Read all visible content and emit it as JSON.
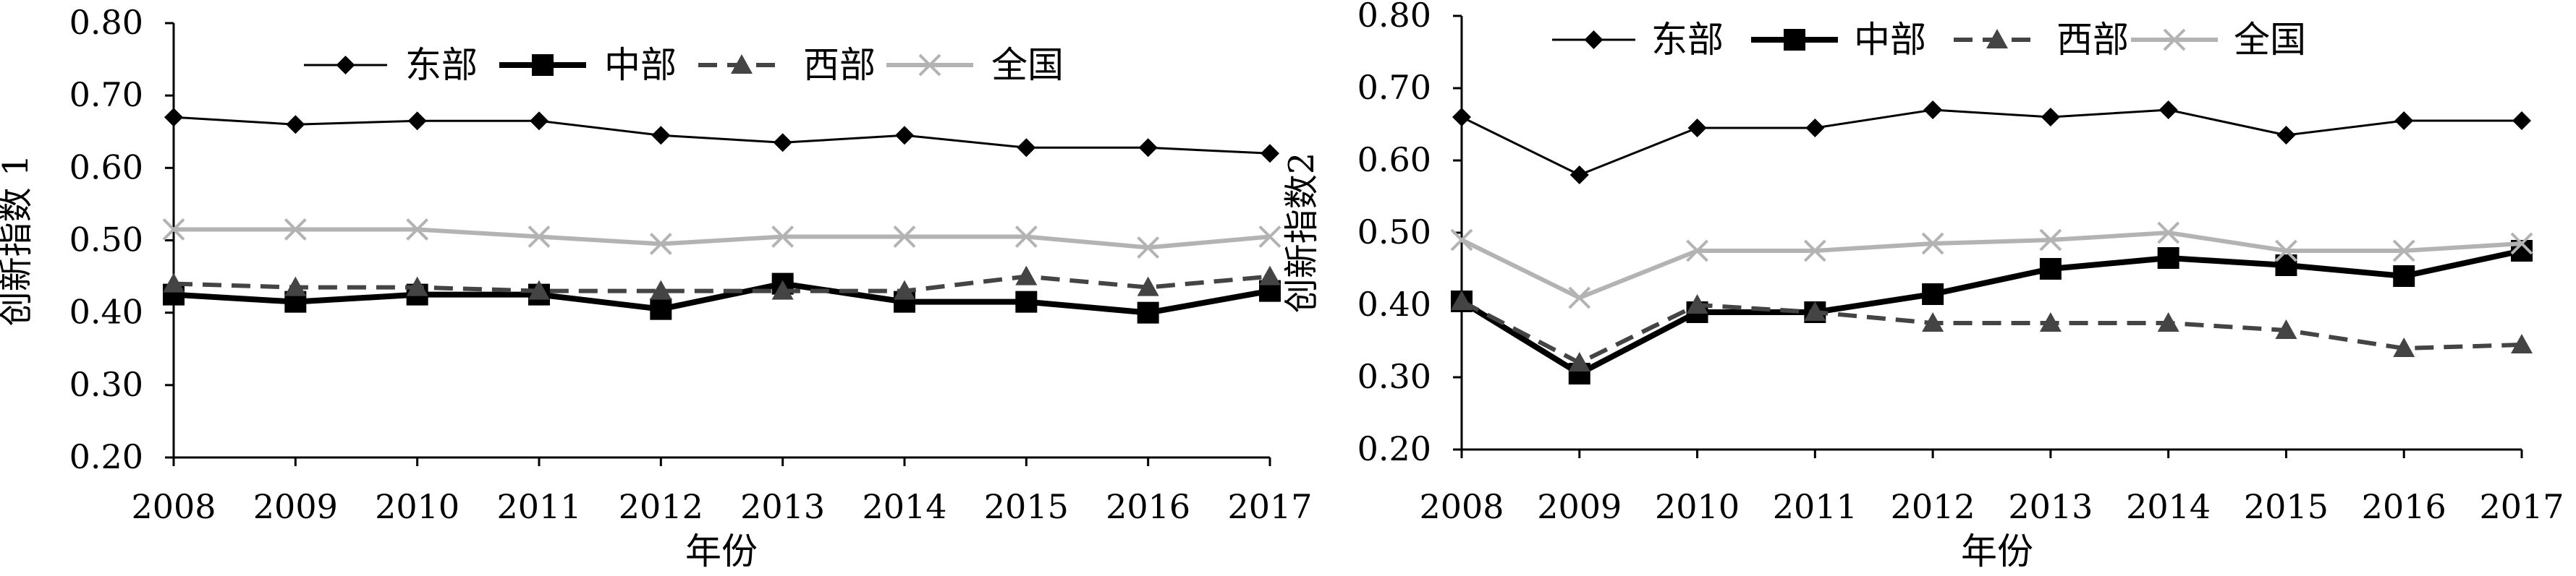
{
  "chart_data": [
    {
      "type": "line",
      "title": "",
      "xlabel": "年份",
      "ylabel": "创新指数 1",
      "ylim": [
        0.2,
        0.8
      ],
      "y_ticks": [
        "0.20",
        "0.30",
        "0.40",
        "0.50",
        "0.60",
        "0.70",
        "0.80"
      ],
      "categories": [
        "2008",
        "2009",
        "2010",
        "2011",
        "2012",
        "2013",
        "2014",
        "2015",
        "2016",
        "2017"
      ],
      "legend_position": "top",
      "grid": false,
      "series": [
        {
          "name": "东部",
          "color": "#000000",
          "marker": "diamond",
          "values": [
            0.67,
            0.66,
            0.665,
            0.665,
            0.645,
            0.635,
            0.645,
            0.628,
            0.628,
            0.62
          ]
        },
        {
          "name": "中部",
          "color": "#000000",
          "marker": "square",
          "values": [
            0.425,
            0.415,
            0.425,
            0.425,
            0.405,
            0.44,
            0.415,
            0.415,
            0.4,
            0.43
          ]
        },
        {
          "name": "西部",
          "color": "#444444",
          "marker": "triangle",
          "values": [
            0.44,
            0.435,
            0.435,
            0.43,
            0.43,
            0.43,
            0.43,
            0.45,
            0.435,
            0.45
          ]
        },
        {
          "name": "全国",
          "color": "#b3b3b3",
          "marker": "x",
          "values": [
            0.515,
            0.515,
            0.515,
            0.505,
            0.495,
            0.505,
            0.505,
            0.505,
            0.49,
            0.505
          ]
        }
      ]
    },
    {
      "type": "line",
      "title": "",
      "xlabel": "年份",
      "ylabel": "创新指数2",
      "ylim": [
        0.2,
        0.8
      ],
      "y_ticks": [
        "0.20",
        "0.30",
        "0.40",
        "0.50",
        "0.60",
        "0.70",
        "0.80"
      ],
      "categories": [
        "2008",
        "2009",
        "2010",
        "2011",
        "2012",
        "2013",
        "2014",
        "2015",
        "2016",
        "2017"
      ],
      "legend_position": "top",
      "grid": false,
      "series": [
        {
          "name": "东部",
          "color": "#000000",
          "marker": "diamond",
          "values": [
            0.66,
            0.58,
            0.645,
            0.645,
            0.67,
            0.66,
            0.67,
            0.635,
            0.655,
            0.655
          ]
        },
        {
          "name": "中部",
          "color": "#000000",
          "marker": "square",
          "values": [
            0.405,
            0.305,
            0.39,
            0.39,
            0.415,
            0.45,
            0.465,
            0.455,
            0.44,
            0.475
          ]
        },
        {
          "name": "西部",
          "color": "#444444",
          "marker": "triangle",
          "values": [
            0.405,
            0.32,
            0.4,
            0.39,
            0.375,
            0.375,
            0.375,
            0.365,
            0.34,
            0.345
          ]
        },
        {
          "name": "全国",
          "color": "#b3b3b3",
          "marker": "x",
          "values": [
            0.49,
            0.41,
            0.475,
            0.475,
            0.485,
            0.49,
            0.5,
            0.475,
            0.475,
            0.485
          ]
        }
      ]
    }
  ]
}
